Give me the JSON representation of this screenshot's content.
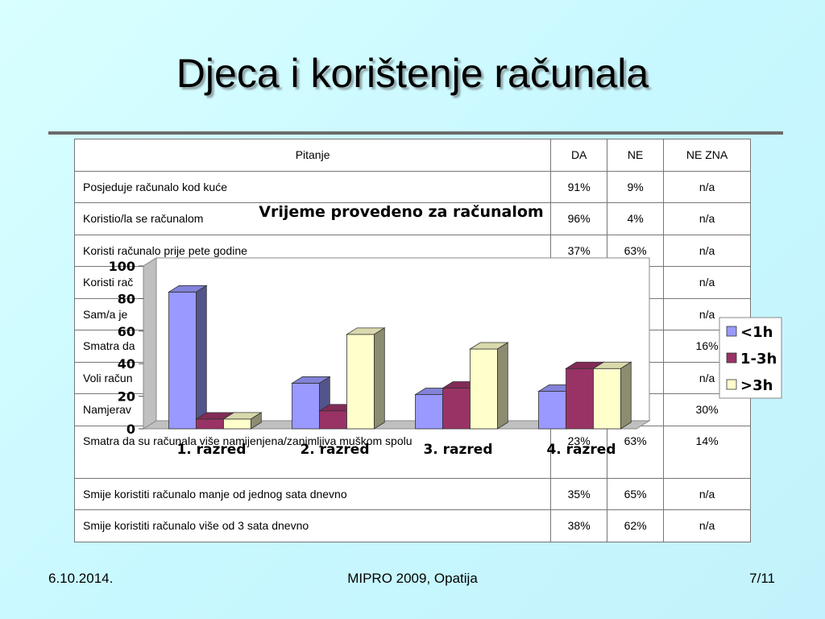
{
  "slide": {
    "title": "Djeca i korištenje računala"
  },
  "table": {
    "headers": [
      "Pitanje",
      "DA",
      "NE",
      "NE ZNA"
    ],
    "rows": [
      {
        "q": "Posjeduje računalo kod kuće",
        "da": "91%",
        "ne": "9%",
        "nz": "n/a"
      },
      {
        "q": "Koristio/la se računalom",
        "da": "96%",
        "ne": "4%",
        "nz": "n/a"
      },
      {
        "q": "Koristi računalo prije pete godine",
        "da": "37%",
        "ne": "63%",
        "nz": "n/a"
      },
      {
        "q": "Koristi rač",
        "da": "",
        "ne": "",
        "nz": "n/a"
      },
      {
        "q": "Sam/a je",
        "da": "",
        "ne": "",
        "nz": "n/a"
      },
      {
        "q": "Smatra da",
        "da": "",
        "ne": "",
        "nz": "16%"
      },
      {
        "q": "Voli račun",
        "da": "",
        "ne": "",
        "nz": "n/a"
      },
      {
        "q": "Namjerav",
        "da": "",
        "ne": "",
        "nz": "30%"
      },
      {
        "q": "Smatra da su računala više namijenjena/zanimljiva muškom spolu",
        "da": "23%",
        "ne": "63%",
        "nz": "14%"
      },
      {
        "q": "Smije koristiti računalo manje od jednog sata dnevno",
        "da": "35%",
        "ne": "65%",
        "nz": "n/a"
      },
      {
        "q": "Smije koristiti računalo više od 3 sata dnevno",
        "da": "38%",
        "ne": "62%",
        "nz": "n/a"
      }
    ]
  },
  "chart_data": {
    "type": "bar",
    "title": "Vrijeme provedeno za računalom",
    "categories": [
      "1. razred",
      "2. razred",
      "3. razred",
      "4. razred"
    ],
    "series": [
      {
        "name": "<1h",
        "values": [
          84,
          28,
          21,
          23
        ],
        "color": "#9999ff"
      },
      {
        "name": "1-3h",
        "values": [
          6,
          11,
          25,
          37
        ],
        "color": "#993366"
      },
      {
        "name": ">3h",
        "values": [
          6,
          58,
          49,
          37
        ],
        "color": "#ffffcc"
      }
    ],
    "ylim": [
      0,
      100
    ],
    "yticks": [
      0,
      20,
      40,
      60,
      80,
      100
    ],
    "legend": "right",
    "grid": false
  },
  "footer": {
    "date": "6.10.2014.",
    "center": "MIPRO 2009, Opatija",
    "page": "7/11"
  }
}
